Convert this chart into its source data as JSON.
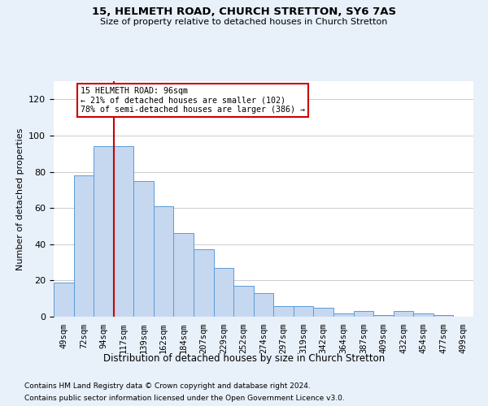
{
  "title1": "15, HELMETH ROAD, CHURCH STRETTON, SY6 7AS",
  "title2": "Size of property relative to detached houses in Church Stretton",
  "xlabel": "Distribution of detached houses by size in Church Stretton",
  "ylabel": "Number of detached properties",
  "categories": [
    "49sqm",
    "72sqm",
    "94sqm",
    "117sqm",
    "139sqm",
    "162sqm",
    "184sqm",
    "207sqm",
    "229sqm",
    "252sqm",
    "274sqm",
    "297sqm",
    "319sqm",
    "342sqm",
    "364sqm",
    "387sqm",
    "409sqm",
    "432sqm",
    "454sqm",
    "477sqm",
    "499sqm"
  ],
  "values": [
    19,
    78,
    94,
    94,
    75,
    61,
    46,
    37,
    27,
    17,
    13,
    6,
    6,
    5,
    2,
    3,
    1,
    3,
    2,
    1,
    0
  ],
  "bar_color": "#c5d8f0",
  "bar_edge_color": "#5b9bd5",
  "ylim": [
    0,
    130
  ],
  "yticks": [
    0,
    20,
    40,
    60,
    80,
    100,
    120
  ],
  "property_line_x": 2.5,
  "annotation_text": "15 HELMETH ROAD: 96sqm\n← 21% of detached houses are smaller (102)\n78% of semi-detached houses are larger (386) →",
  "annotation_box_color": "#ffffff",
  "annotation_box_edge": "#cc0000",
  "red_line_color": "#cc0000",
  "footer1": "Contains HM Land Registry data © Crown copyright and database right 2024.",
  "footer2": "Contains public sector information licensed under the Open Government Licence v3.0.",
  "bg_color": "#e8f0fa",
  "plot_bg_color": "#ffffff",
  "grid_color": "#cccccc"
}
